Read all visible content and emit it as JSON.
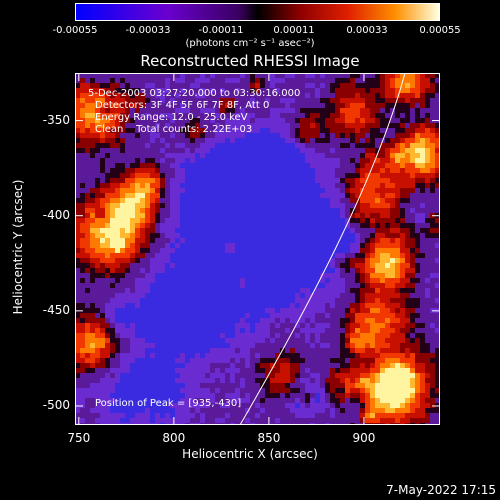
{
  "colorbar": {
    "ticks": [
      "-0.00055",
      "-0.00033",
      "-0.00011",
      "0.00011",
      "0.00033",
      "0.00055"
    ],
    "units": "(photons cm⁻² s⁻¹ asec⁻²)"
  },
  "title": "Reconstructed RHESSI Image",
  "info": {
    "time": "5-Dec-2003 03:27:20.000 to 03:30:16.000",
    "detectors": "Detectors: 3F 4F 5F 6F 7F 8F, Att 0",
    "energy": "Energy Range: 12.0 - 25.0 keV",
    "method": "Clean    Total counts: 2.22E+03",
    "peak": "Position of Peak = [935,-430]"
  },
  "axes": {
    "xlabel": "Heliocentric X (arcsec)",
    "ylabel": "Heliocentric Y (arcsec)",
    "xticks": [
      "750",
      "800",
      "850",
      "900"
    ],
    "yticks": [
      "-350",
      "-400",
      "-450",
      "-500"
    ],
    "xlim": [
      748,
      940
    ],
    "ylim": [
      -510,
      -325
    ]
  },
  "datestamp": "7-May-2022 17:15"
}
